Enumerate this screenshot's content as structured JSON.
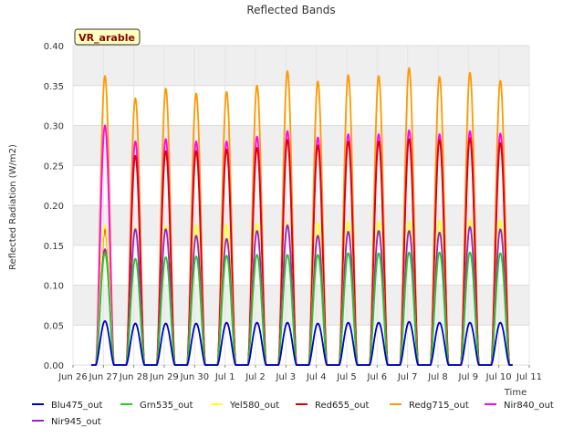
{
  "chart_data": {
    "type": "line",
    "title": "Reflected Bands",
    "xlabel": "Time",
    "ylabel": "Reflected Radiation (W/m2)",
    "ylim": [
      0,
      0.4
    ],
    "yticks": [
      "0.00",
      "0.05",
      "0.10",
      "0.15",
      "0.20",
      "0.25",
      "0.30",
      "0.35",
      "0.40"
    ],
    "xlim": [
      0,
      15
    ],
    "xticks": [
      "Jun 26",
      "Jun 27",
      "Jun 28",
      "Jun 29",
      "Jun 30",
      "Jul 1",
      "Jul 2",
      "Jul 3",
      "Jul 4",
      "Jul 5",
      "Jul 6",
      "Jul 7",
      "Jul 8",
      "Jul 9",
      "Jul 10",
      "Jul 11"
    ],
    "grid": true,
    "legend_position": "bottom",
    "annotation": "VR_arable",
    "day_centers": [
      1.05,
      2.05,
      3.05,
      4.05,
      5.05,
      6.05,
      7.05,
      8.05,
      9.05,
      10.05,
      11.05,
      12.05,
      13.05,
      14.05
    ],
    "series": [
      {
        "name": "Blu475_out",
        "color": "#0000cc",
        "values": [
          0.055,
          0.052,
          0.052,
          0.052,
          0.053,
          0.053,
          0.053,
          0.052,
          0.053,
          0.053,
          0.054,
          0.053,
          0.053,
          0.053
        ]
      },
      {
        "name": "Grn535_out",
        "color": "#22cc22",
        "values": [
          0.14,
          0.133,
          0.135,
          0.136,
          0.137,
          0.138,
          0.138,
          0.138,
          0.14,
          0.14,
          0.141,
          0.141,
          0.141,
          0.14
        ]
      },
      {
        "name": "Yel580_out",
        "color": "#ffff22",
        "values": [
          0.175,
          0.172,
          0.174,
          0.175,
          0.176,
          0.177,
          0.178,
          0.178,
          0.179,
          0.179,
          0.18,
          0.181,
          0.181,
          0.181
        ]
      },
      {
        "name": "Red655_out",
        "color": "#dd0000",
        "values": [
          0.17,
          0.262,
          0.268,
          0.268,
          0.27,
          0.272,
          0.282,
          0.275,
          0.28,
          0.28,
          0.283,
          0.282,
          0.284,
          0.278
        ]
      },
      {
        "name": "Redg715_out",
        "color": "#ff9900",
        "values": [
          0.362,
          0.334,
          0.346,
          0.34,
          0.342,
          0.35,
          0.368,
          0.355,
          0.363,
          0.362,
          0.372,
          0.361,
          0.366,
          0.356
        ]
      },
      {
        "name": "Nir840_out",
        "color": "#ff00ff",
        "values": [
          0.3,
          0.28,
          0.283,
          0.28,
          0.28,
          0.286,
          0.293,
          0.285,
          0.289,
          0.289,
          0.294,
          0.289,
          0.293,
          0.29
        ]
      },
      {
        "name": "Nir945_out",
        "color": "#9922cc",
        "values": [
          0.145,
          0.17,
          0.17,
          0.162,
          0.158,
          0.168,
          0.175,
          0.162,
          0.167,
          0.168,
          0.168,
          0.166,
          0.173,
          0.17
        ]
      }
    ]
  }
}
